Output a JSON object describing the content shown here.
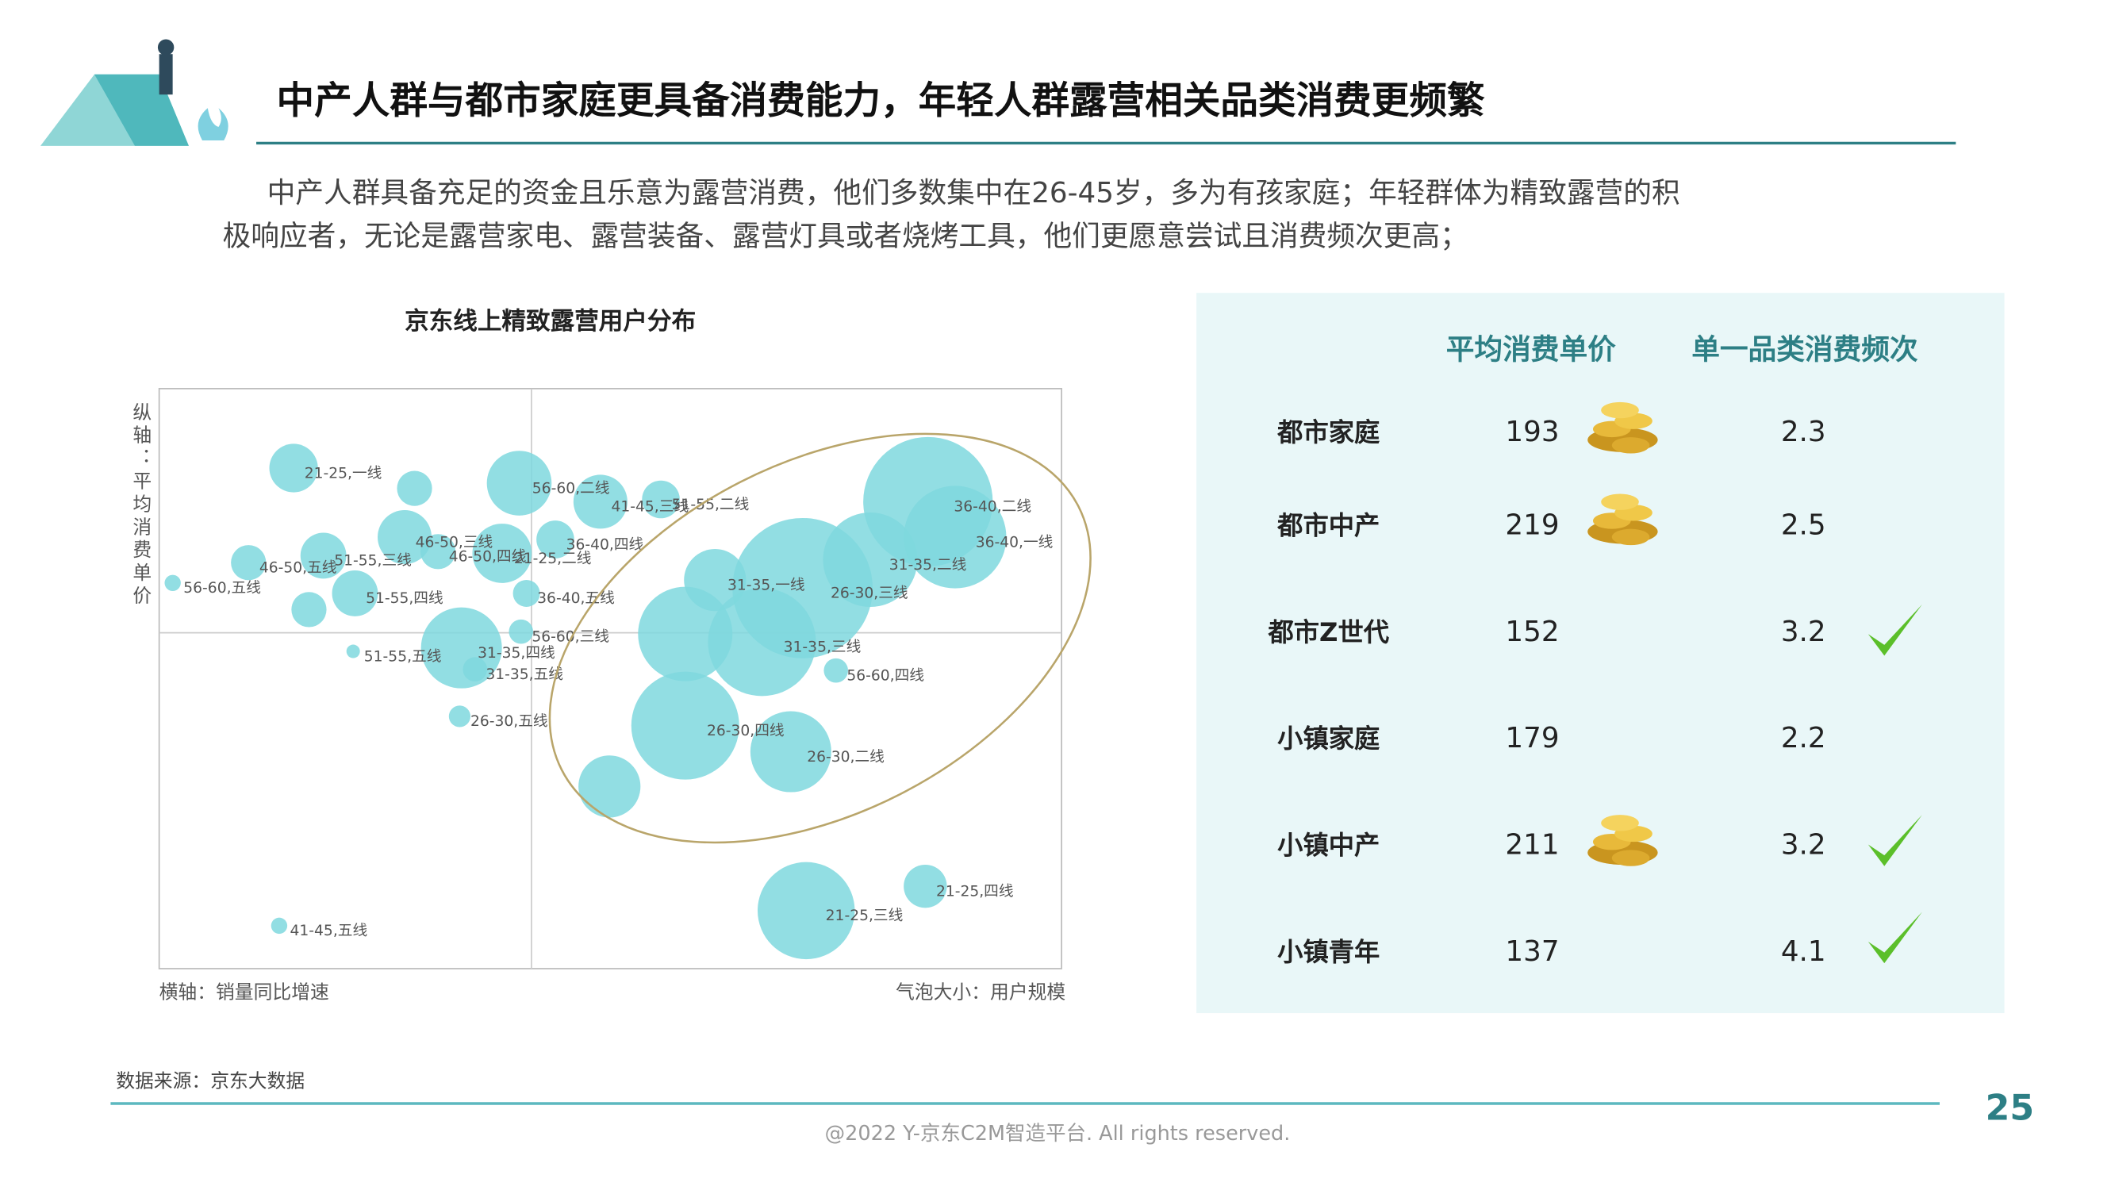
{
  "title": "中产人群与都市家庭更具备消费能力，年轻人群露营相关品类消费更频繁",
  "intro": [
    "中产人群具备充足的资金且乐意为露营消费，他们多数集中在26-45岁，多为有孩家庭；年轻群体为精致露营的积",
    "极响应者，无论是露营家电、露营装备、露营灯具或者烧烤工具，他们更愿意尝试且消费频次更高；"
  ],
  "chart_data": {
    "type": "scatter",
    "title": "京东线上精致露营用户分布",
    "y_label": "纵轴：平均消费单价",
    "x_label": "横轴：销量同比增速",
    "size_label": "气泡大小：用户规模",
    "color": "#7fd8de",
    "xlim": [
      0,
      100
    ],
    "ylim": [
      0,
      100
    ],
    "x": [
      14.9,
      28.3,
      39.9,
      48.9,
      55.6,
      27.2,
      18.2,
      9.9,
      1.5,
      21.7,
      16.6,
      30.9,
      38.0,
      43.9,
      40.7,
      40.1,
      21.5,
      33.5,
      35.0,
      33.3,
      13.3,
      61.6,
      71.3,
      58.3,
      66.8,
      78.8,
      85.2,
      88.2,
      75.0,
      58.3,
      49.9,
      70.0,
      71.7,
      84.9
    ],
    "y": [
      86.3,
      82.8,
      83.7,
      80.5,
      80.9,
      74.4,
      71.2,
      70.0,
      66.5,
      64.7,
      61.9,
      71.9,
      71.6,
      74.0,
      64.7,
      58.1,
      54.7,
      55.3,
      51.6,
      43.5,
      7.4,
      67.0,
      65.6,
      57.7,
      56.3,
      70.5,
      80.5,
      74.4,
      51.4,
      41.9,
      31.4,
      37.4,
      10.0,
      14.2
    ],
    "size": [
      18,
      13,
      24,
      20,
      14,
      20,
      17,
      13,
      6,
      17,
      13,
      13,
      22,
      14,
      10,
      9,
      5,
      30,
      9,
      8,
      6,
      23,
      52,
      35,
      40,
      35,
      48,
      38,
      9,
      40,
      23,
      30,
      36,
      16
    ],
    "labels": [
      "21-25,一线",
      null,
      "56-60,二线",
      "41-45,三线",
      "51-55,二线",
      "46-50,三线",
      "51-55,三线",
      "46-50,五线",
      "56-60,五线",
      "51-55,四线",
      null,
      "46-50,四线",
      "21-25,二线",
      "36-40,四线",
      "36-40,五线",
      "56-60,三线",
      "51-55,五线",
      "31-35,四线",
      "31-35,五线",
      "26-30,五线",
      "41-45,五线",
      "31-35,一线",
      "26-30,三线",
      null,
      "31-35,三线",
      "31-35,二线",
      "36-40,二线",
      "36-40,一线",
      "56-60,四线",
      "26-30,四线",
      null,
      "26-30,二线",
      "21-25,三线",
      "21-25,四线"
    ]
  },
  "table": {
    "headers": [
      "平均消费单价",
      "单一品类消费频次"
    ],
    "rows": [
      [
        "都市家庭",
        "193",
        "2.3"
      ],
      [
        "都市中产",
        "219",
        "2.5"
      ],
      [
        "都市Z世代",
        "152",
        "3.2"
      ],
      [
        "小镇家庭",
        "179",
        "2.2"
      ],
      [
        "小镇中产",
        "211",
        "3.2"
      ],
      [
        "小镇青年",
        "137",
        "4.1"
      ]
    ]
  },
  "source": "数据来源：京东大数据",
  "page": "25",
  "footer": "@2022 Y-京东C2M智造平台. All rights reserved."
}
